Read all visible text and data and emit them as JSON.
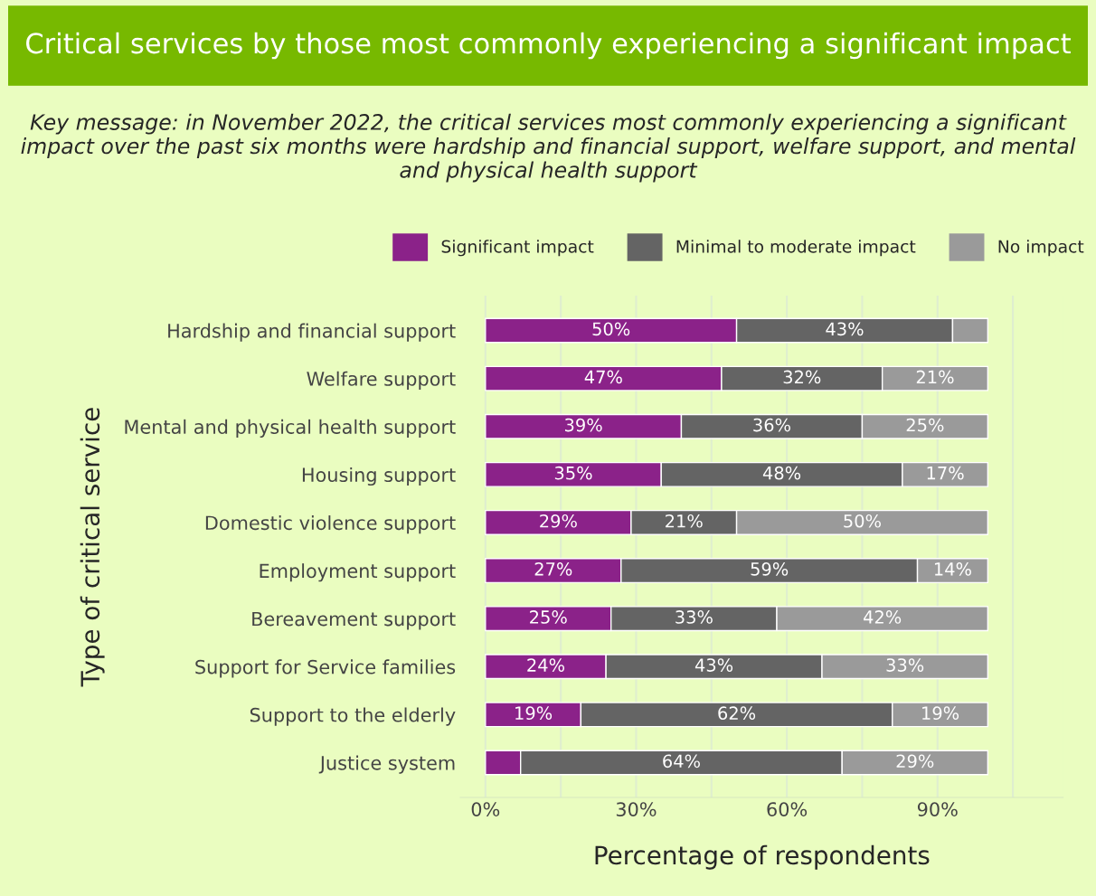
{
  "chart_data": {
    "type": "bar",
    "orientation": "horizontal",
    "stacked": true,
    "title": "Critical services by those most commonly experiencing a significant impact",
    "subtitle": "Key message: in November 2022, the critical services most commonly experiencing a significant impact over the past six months were hardship and financial support, welfare support, and mental and physical health support",
    "xlabel": "Percentage of respondents",
    "ylabel": "Type of critical service",
    "categories": [
      "Hardship and financial support",
      "Welfare support",
      "Mental and physical health support",
      "Housing support",
      "Domestic violence support",
      "Employment support",
      "Bereavement support",
      "Support for Service families",
      "Support to the elderly",
      "Justice system"
    ],
    "series": [
      {
        "name": "Significant impact",
        "color": "#8b2289",
        "values": [
          50,
          47,
          39,
          35,
          29,
          27,
          25,
          24,
          19,
          7
        ],
        "value_labels": [
          "50%",
          "47%",
          "39%",
          "35%",
          "29%",
          "27%",
          "25%",
          "24%",
          "19%",
          null
        ]
      },
      {
        "name": "Minimal to moderate impact",
        "color": "#646464",
        "values": [
          43,
          32,
          36,
          48,
          21,
          59,
          33,
          43,
          62,
          64
        ],
        "value_labels": [
          "43%",
          "32%",
          "36%",
          "48%",
          "21%",
          "59%",
          "33%",
          "43%",
          "62%",
          "64%"
        ]
      },
      {
        "name": "No impact",
        "color": "#9a9a9a",
        "values": [
          7,
          21,
          25,
          17,
          50,
          14,
          42,
          33,
          19,
          29
        ],
        "value_labels": [
          null,
          "21%",
          "25%",
          "17%",
          "50%",
          "14%",
          "42%",
          "33%",
          "19%",
          "29%"
        ]
      }
    ],
    "xlim": [
      -5,
      115
    ],
    "xticks": [
      {
        "value": 0,
        "label": "0%"
      },
      {
        "value": 15,
        "label": null
      },
      {
        "value": 30,
        "label": "30%"
      },
      {
        "value": 45,
        "label": null
      },
      {
        "value": 60,
        "label": "60%"
      },
      {
        "value": 75,
        "label": null
      },
      {
        "value": 90,
        "label": "90%"
      },
      {
        "value": 105,
        "label": null
      }
    ],
    "grid": "x",
    "legend": "top right"
  }
}
